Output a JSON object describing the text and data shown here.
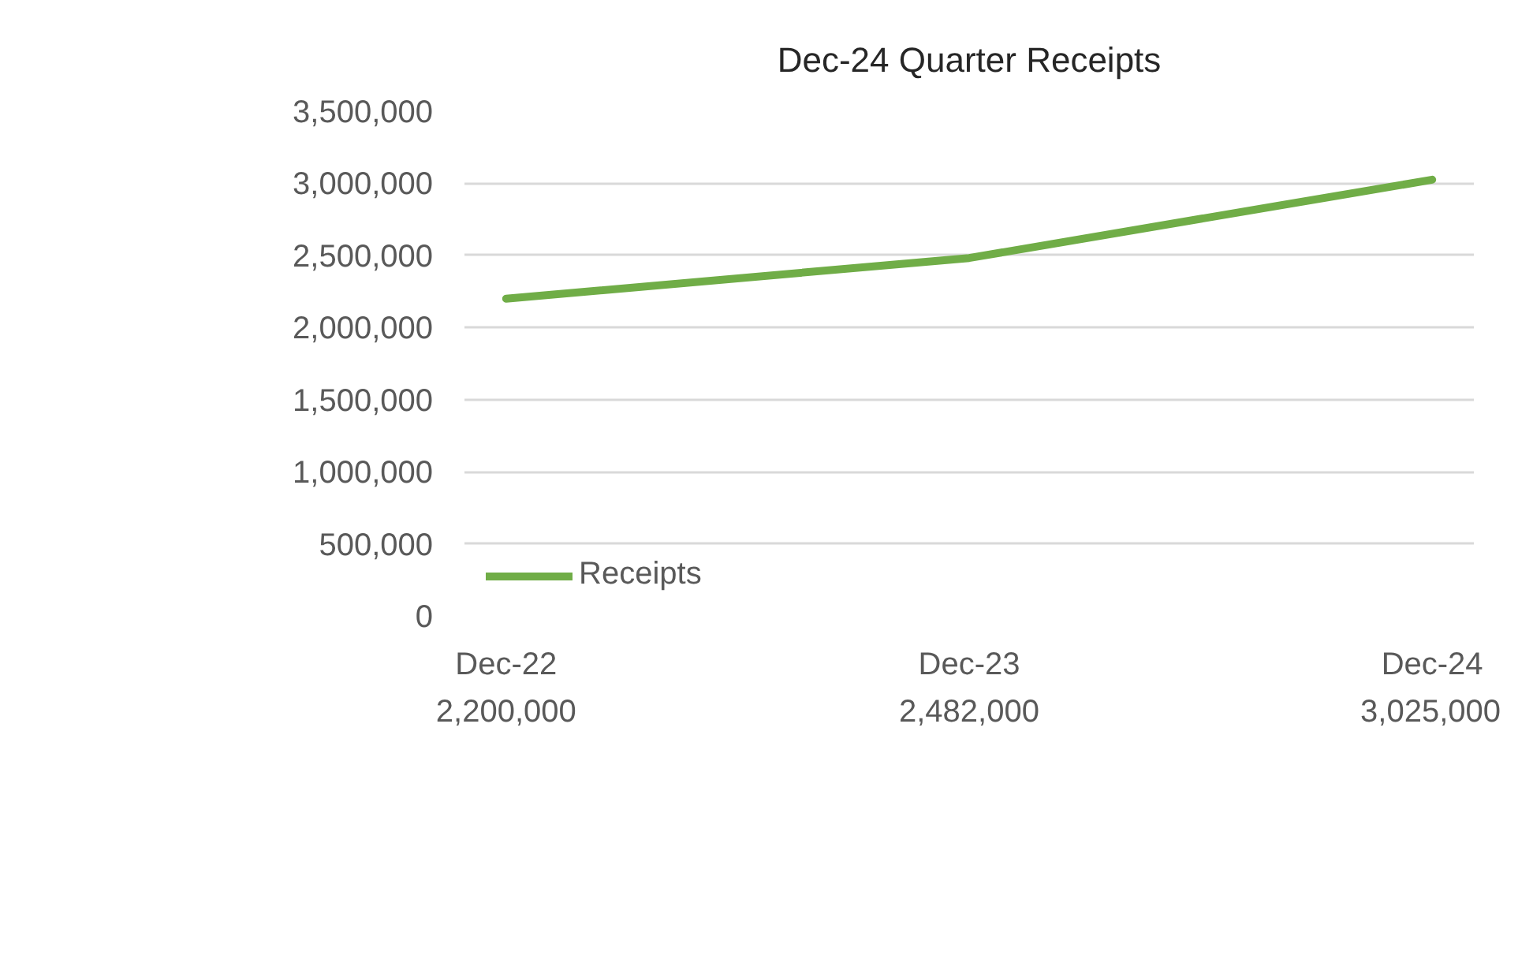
{
  "chart_data": {
    "type": "line",
    "title": "Dec-24 Quarter Receipts",
    "categories": [
      "Dec-22",
      "Dec-23",
      "Dec-24"
    ],
    "series": [
      {
        "name": "Receipts",
        "color": "#70ad47",
        "values": [
          2200000,
          2482000,
          3025000
        ]
      }
    ],
    "ylim": [
      0,
      3500000
    ],
    "yticks": [
      {
        "value": 0,
        "label": "0"
      },
      {
        "value": 500000,
        "label": "500,000"
      },
      {
        "value": 1000000,
        "label": "1,000,000"
      },
      {
        "value": 1500000,
        "label": "1,500,000"
      },
      {
        "value": 2000000,
        "label": "2,000,000"
      },
      {
        "value": 2500000,
        "label": "2,500,000"
      },
      {
        "value": 3000000,
        "label": "3,000,000"
      },
      {
        "value": 3500000,
        "label": "3,500,000"
      }
    ],
    "value_labels": [
      "2,200,000",
      "2,482,000",
      "3,025,000"
    ],
    "grid": "y",
    "legend": "bottom left",
    "marker": "none",
    "line_style": "solid"
  }
}
